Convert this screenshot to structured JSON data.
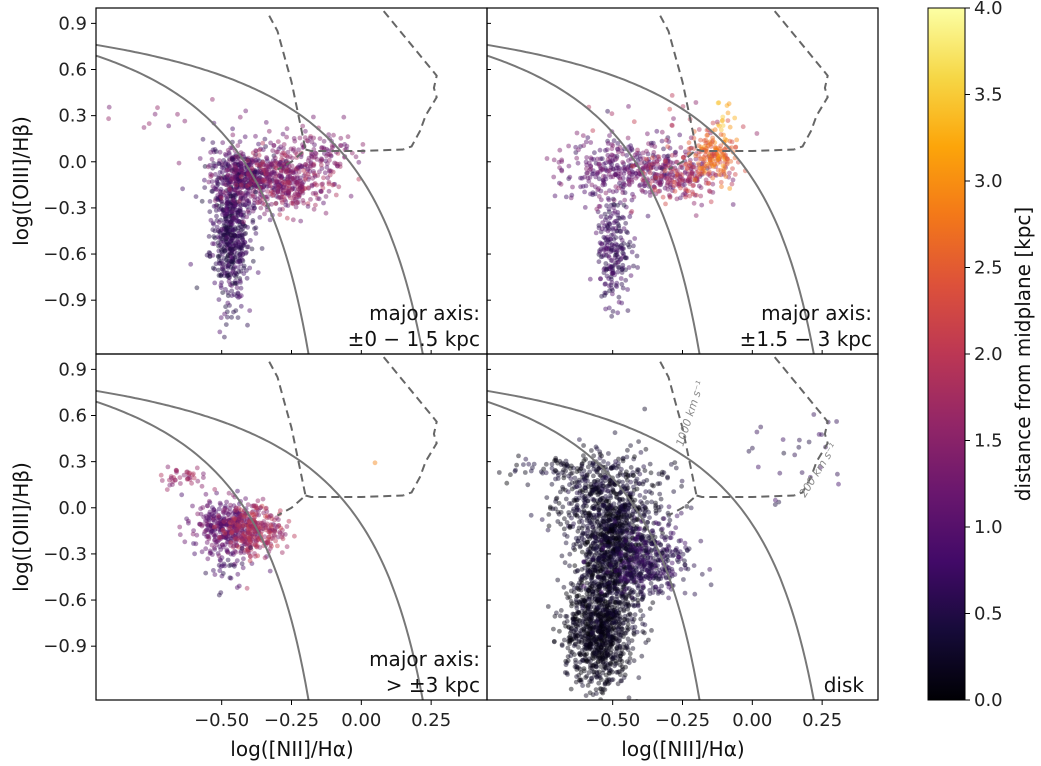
{
  "chart_data": {
    "type": "scatter",
    "title": "",
    "xlabel": "log([NII]/Hα)",
    "ylabel": "log([OIII]/Hβ)",
    "xlim": [
      -0.95,
      0.45
    ],
    "ylim": [
      -1.25,
      1.0
    ],
    "xticks": [
      -0.5,
      -0.25,
      0.0,
      0.25
    ],
    "xtick_labels": [
      "−0.50",
      "−0.25",
      "0.00",
      "0.25"
    ],
    "yticks": [
      -0.9,
      -0.6,
      -0.3,
      0.0,
      0.3,
      0.6,
      0.9
    ],
    "ytick_labels": [
      "−0.9",
      "−0.6",
      "−0.3",
      "0.0",
      "0.3",
      "0.6",
      "0.9"
    ],
    "colorbar": {
      "label": "distance from midplane [kpc]",
      "range": [
        0.0,
        4.0
      ],
      "ticks": [
        0.0,
        0.5,
        1.0,
        1.5,
        2.0,
        2.5,
        3.0,
        3.5,
        4.0
      ],
      "tick_labels": [
        "0.0",
        "0.5",
        "1.0",
        "1.5",
        "2.0",
        "2.5",
        "3.0",
        "3.5",
        "4.0"
      ],
      "colormap": "inferno"
    },
    "curves": {
      "kauffmann_2003": "y = 0.61/(x - 0.05) + 1.3",
      "kewley_2001": "y = 0.61/(x - 0.47) + 1.19",
      "shock_grid_dashed": "fast-shock model grid outline"
    },
    "shock_labels": [
      "1000 km s⁻¹",
      "200 km s⁻¹"
    ],
    "panels": [
      {
        "id": "top-left",
        "label_lines": [
          "major axis:",
          "±0 − 1.5 kpc"
        ],
        "clusters": [
          {
            "cx": -0.47,
            "cy": -0.48,
            "sx": 0.035,
            "sy": 0.22,
            "n": 520,
            "zmin": 0.3,
            "zmax": 1.0
          },
          {
            "cx": -0.42,
            "cy": -0.1,
            "sx": 0.07,
            "sy": 0.1,
            "n": 450,
            "zmin": 0.5,
            "zmax": 1.5
          },
          {
            "cx": -0.26,
            "cy": -0.12,
            "sx": 0.08,
            "sy": 0.1,
            "n": 420,
            "zmin": 1.0,
            "zmax": 2.0
          },
          {
            "cx": -0.15,
            "cy": 0.1,
            "sx": 0.1,
            "sy": 0.08,
            "n": 100,
            "zmin": 1.0,
            "zmax": 1.6
          },
          {
            "cx": -0.7,
            "cy": 0.28,
            "sx": 0.12,
            "sy": 0.05,
            "n": 12,
            "zmin": 1.0,
            "zmax": 1.6
          }
        ]
      },
      {
        "id": "top-right",
        "label_lines": [
          "major axis:",
          "±1.5 − 3 kpc"
        ],
        "clusters": [
          {
            "cx": -0.5,
            "cy": -0.58,
            "sx": 0.03,
            "sy": 0.16,
            "n": 220,
            "zmin": 0.4,
            "zmax": 1.0
          },
          {
            "cx": -0.45,
            "cy": -0.05,
            "sx": 0.12,
            "sy": 0.1,
            "n": 380,
            "zmin": 0.6,
            "zmax": 1.5
          },
          {
            "cx": -0.25,
            "cy": -0.1,
            "sx": 0.08,
            "sy": 0.08,
            "n": 200,
            "zmin": 1.2,
            "zmax": 2.4
          },
          {
            "cx": -0.14,
            "cy": 0.05,
            "sx": 0.04,
            "sy": 0.08,
            "n": 160,
            "zmin": 2.2,
            "zmax": 3.1
          },
          {
            "cx": -0.12,
            "cy": 0.28,
            "sx": 0.03,
            "sy": 0.05,
            "n": 14,
            "zmin": 3.0,
            "zmax": 3.7
          },
          {
            "cx": -0.25,
            "cy": 0.25,
            "sx": 0.18,
            "sy": 0.08,
            "n": 22,
            "zmin": 1.2,
            "zmax": 2.2
          }
        ]
      },
      {
        "id": "bottom-left",
        "label_lines": [
          "major axis:",
          "> ±3 kpc"
        ],
        "clusters": [
          {
            "cx": -0.48,
            "cy": -0.14,
            "sx": 0.06,
            "sy": 0.09,
            "n": 380,
            "zmin": 0.8,
            "zmax": 1.5
          },
          {
            "cx": -0.38,
            "cy": -0.14,
            "sx": 0.05,
            "sy": 0.08,
            "n": 260,
            "zmin": 1.4,
            "zmax": 2.2
          },
          {
            "cx": -0.62,
            "cy": 0.2,
            "sx": 0.04,
            "sy": 0.04,
            "n": 40,
            "zmin": 1.3,
            "zmax": 1.9
          },
          {
            "cx": -0.47,
            "cy": -0.42,
            "sx": 0.03,
            "sy": 0.08,
            "n": 30,
            "zmin": 0.5,
            "zmax": 1.0
          },
          {
            "cx": 0.05,
            "cy": 0.29,
            "sx": 0.002,
            "sy": 0.002,
            "n": 1,
            "zmin": 2.9,
            "zmax": 2.9
          }
        ]
      },
      {
        "id": "bottom-right",
        "label_lines": [
          "disk"
        ],
        "clusters": [
          {
            "cx": -0.55,
            "cy": -0.8,
            "sx": 0.06,
            "sy": 0.18,
            "n": 900,
            "zmin": 0.0,
            "zmax": 0.3
          },
          {
            "cx": -0.5,
            "cy": -0.3,
            "sx": 0.06,
            "sy": 0.22,
            "n": 900,
            "zmin": 0.0,
            "zmax": 0.45
          },
          {
            "cx": -0.52,
            "cy": 0.05,
            "sx": 0.1,
            "sy": 0.15,
            "n": 500,
            "zmin": 0.0,
            "zmax": 0.5
          },
          {
            "cx": -0.38,
            "cy": -0.35,
            "sx": 0.08,
            "sy": 0.12,
            "n": 400,
            "zmin": 0.3,
            "zmax": 0.8
          },
          {
            "cx": -0.7,
            "cy": 0.25,
            "sx": 0.12,
            "sy": 0.05,
            "n": 70,
            "zmin": 0.0,
            "zmax": 0.5
          },
          {
            "cx": 0.18,
            "cy": 0.32,
            "sx": 0.12,
            "sy": 0.14,
            "n": 26,
            "zmin": 0.3,
            "zmax": 0.8
          }
        ]
      }
    ]
  }
}
